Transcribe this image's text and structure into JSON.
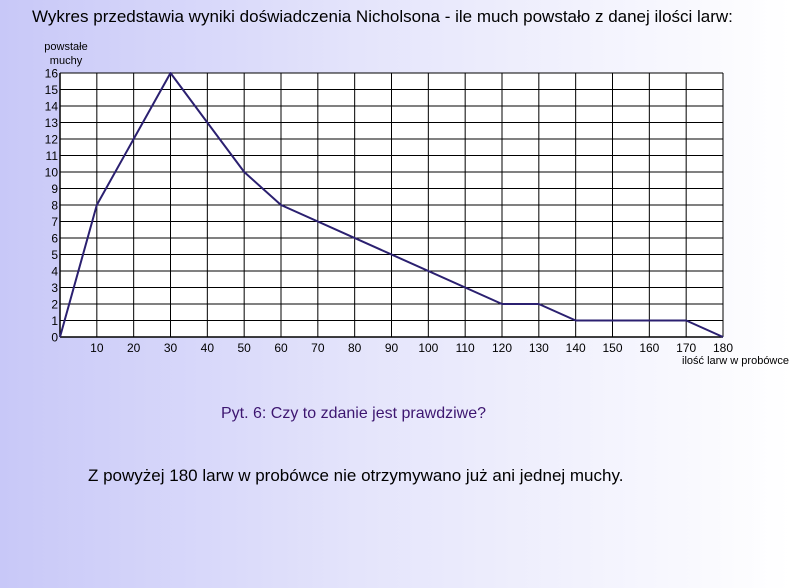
{
  "title": "Wykres przedstawia wyniki doświadczenia Nicholsona - ile much powstało z danej ilości larw:",
  "question": "Pyt. 6: Czy to zdanie jest prawdziwe?",
  "statement": "Z powyżej 180 larw w probówce nie otrzymywano już ani jednej muchy.",
  "chart_data": {
    "type": "line",
    "ylabel": [
      "powstałe",
      "muchy"
    ],
    "xlabel": "ilość larw w probówce",
    "x": [
      0,
      10,
      30,
      40,
      50,
      60,
      120,
      130,
      140,
      170,
      180
    ],
    "series": [
      {
        "values": [
          0,
          8,
          16,
          13,
          10,
          8,
          2,
          2,
          1,
          1,
          0
        ]
      }
    ],
    "xlim": [
      0,
      180
    ],
    "ylim": [
      0,
      16
    ],
    "x_ticks": [
      10,
      20,
      30,
      40,
      50,
      60,
      70,
      80,
      90,
      100,
      110,
      120,
      130,
      140,
      150,
      160,
      170,
      180
    ],
    "y_ticks": [
      0,
      1,
      2,
      3,
      4,
      5,
      6,
      7,
      8,
      9,
      10,
      11,
      12,
      13,
      14,
      15,
      16
    ],
    "grid": true,
    "colors": {
      "line": "#2b2070",
      "grid": "#000000",
      "plot_bg": "#ffffff"
    }
  }
}
